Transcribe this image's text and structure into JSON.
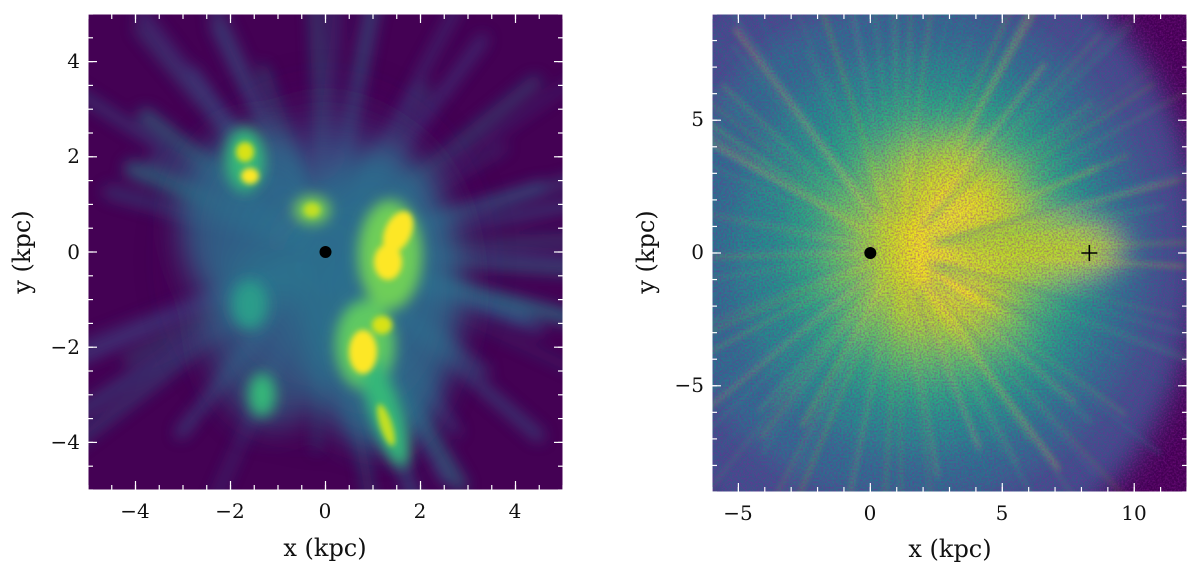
{
  "chart_data": [
    {
      "type": "heatmap",
      "title": "",
      "xlabel": "x (kpc)",
      "ylabel": "y (kpc)",
      "xlim": [
        -5,
        5
      ],
      "ylim": [
        -5,
        5
      ],
      "xticks": [
        -4,
        -2,
        0,
        2,
        4
      ],
      "xtick_labels": [
        "−4",
        "−2",
        "0",
        "2",
        "4"
      ],
      "yticks": [
        -4,
        -2,
        0,
        2,
        4
      ],
      "ytick_labels": [
        "−4",
        "−2",
        "0",
        "2",
        "4"
      ],
      "colormap": "viridis",
      "markers": [
        {
          "shape": "dot",
          "x": 0,
          "y": 0,
          "color": "#000000"
        }
      ]
    },
    {
      "type": "heatmap",
      "title": "",
      "xlabel": "x (kpc)",
      "ylabel": "y (kpc)",
      "xlim": [
        -6,
        12
      ],
      "ylim": [
        -9,
        9
      ],
      "xticks": [
        -5,
        0,
        5,
        10
      ],
      "xtick_labels": [
        "−5",
        "0",
        "5",
        "10"
      ],
      "yticks": [
        -5,
        0,
        5
      ],
      "ytick_labels": [
        "−5",
        "0",
        "5"
      ],
      "colormap": "viridis",
      "markers": [
        {
          "shape": "dot",
          "x": 0,
          "y": 0,
          "color": "#000000"
        },
        {
          "shape": "plus",
          "x": 8.3,
          "y": 0,
          "color": "#000000"
        }
      ]
    }
  ]
}
